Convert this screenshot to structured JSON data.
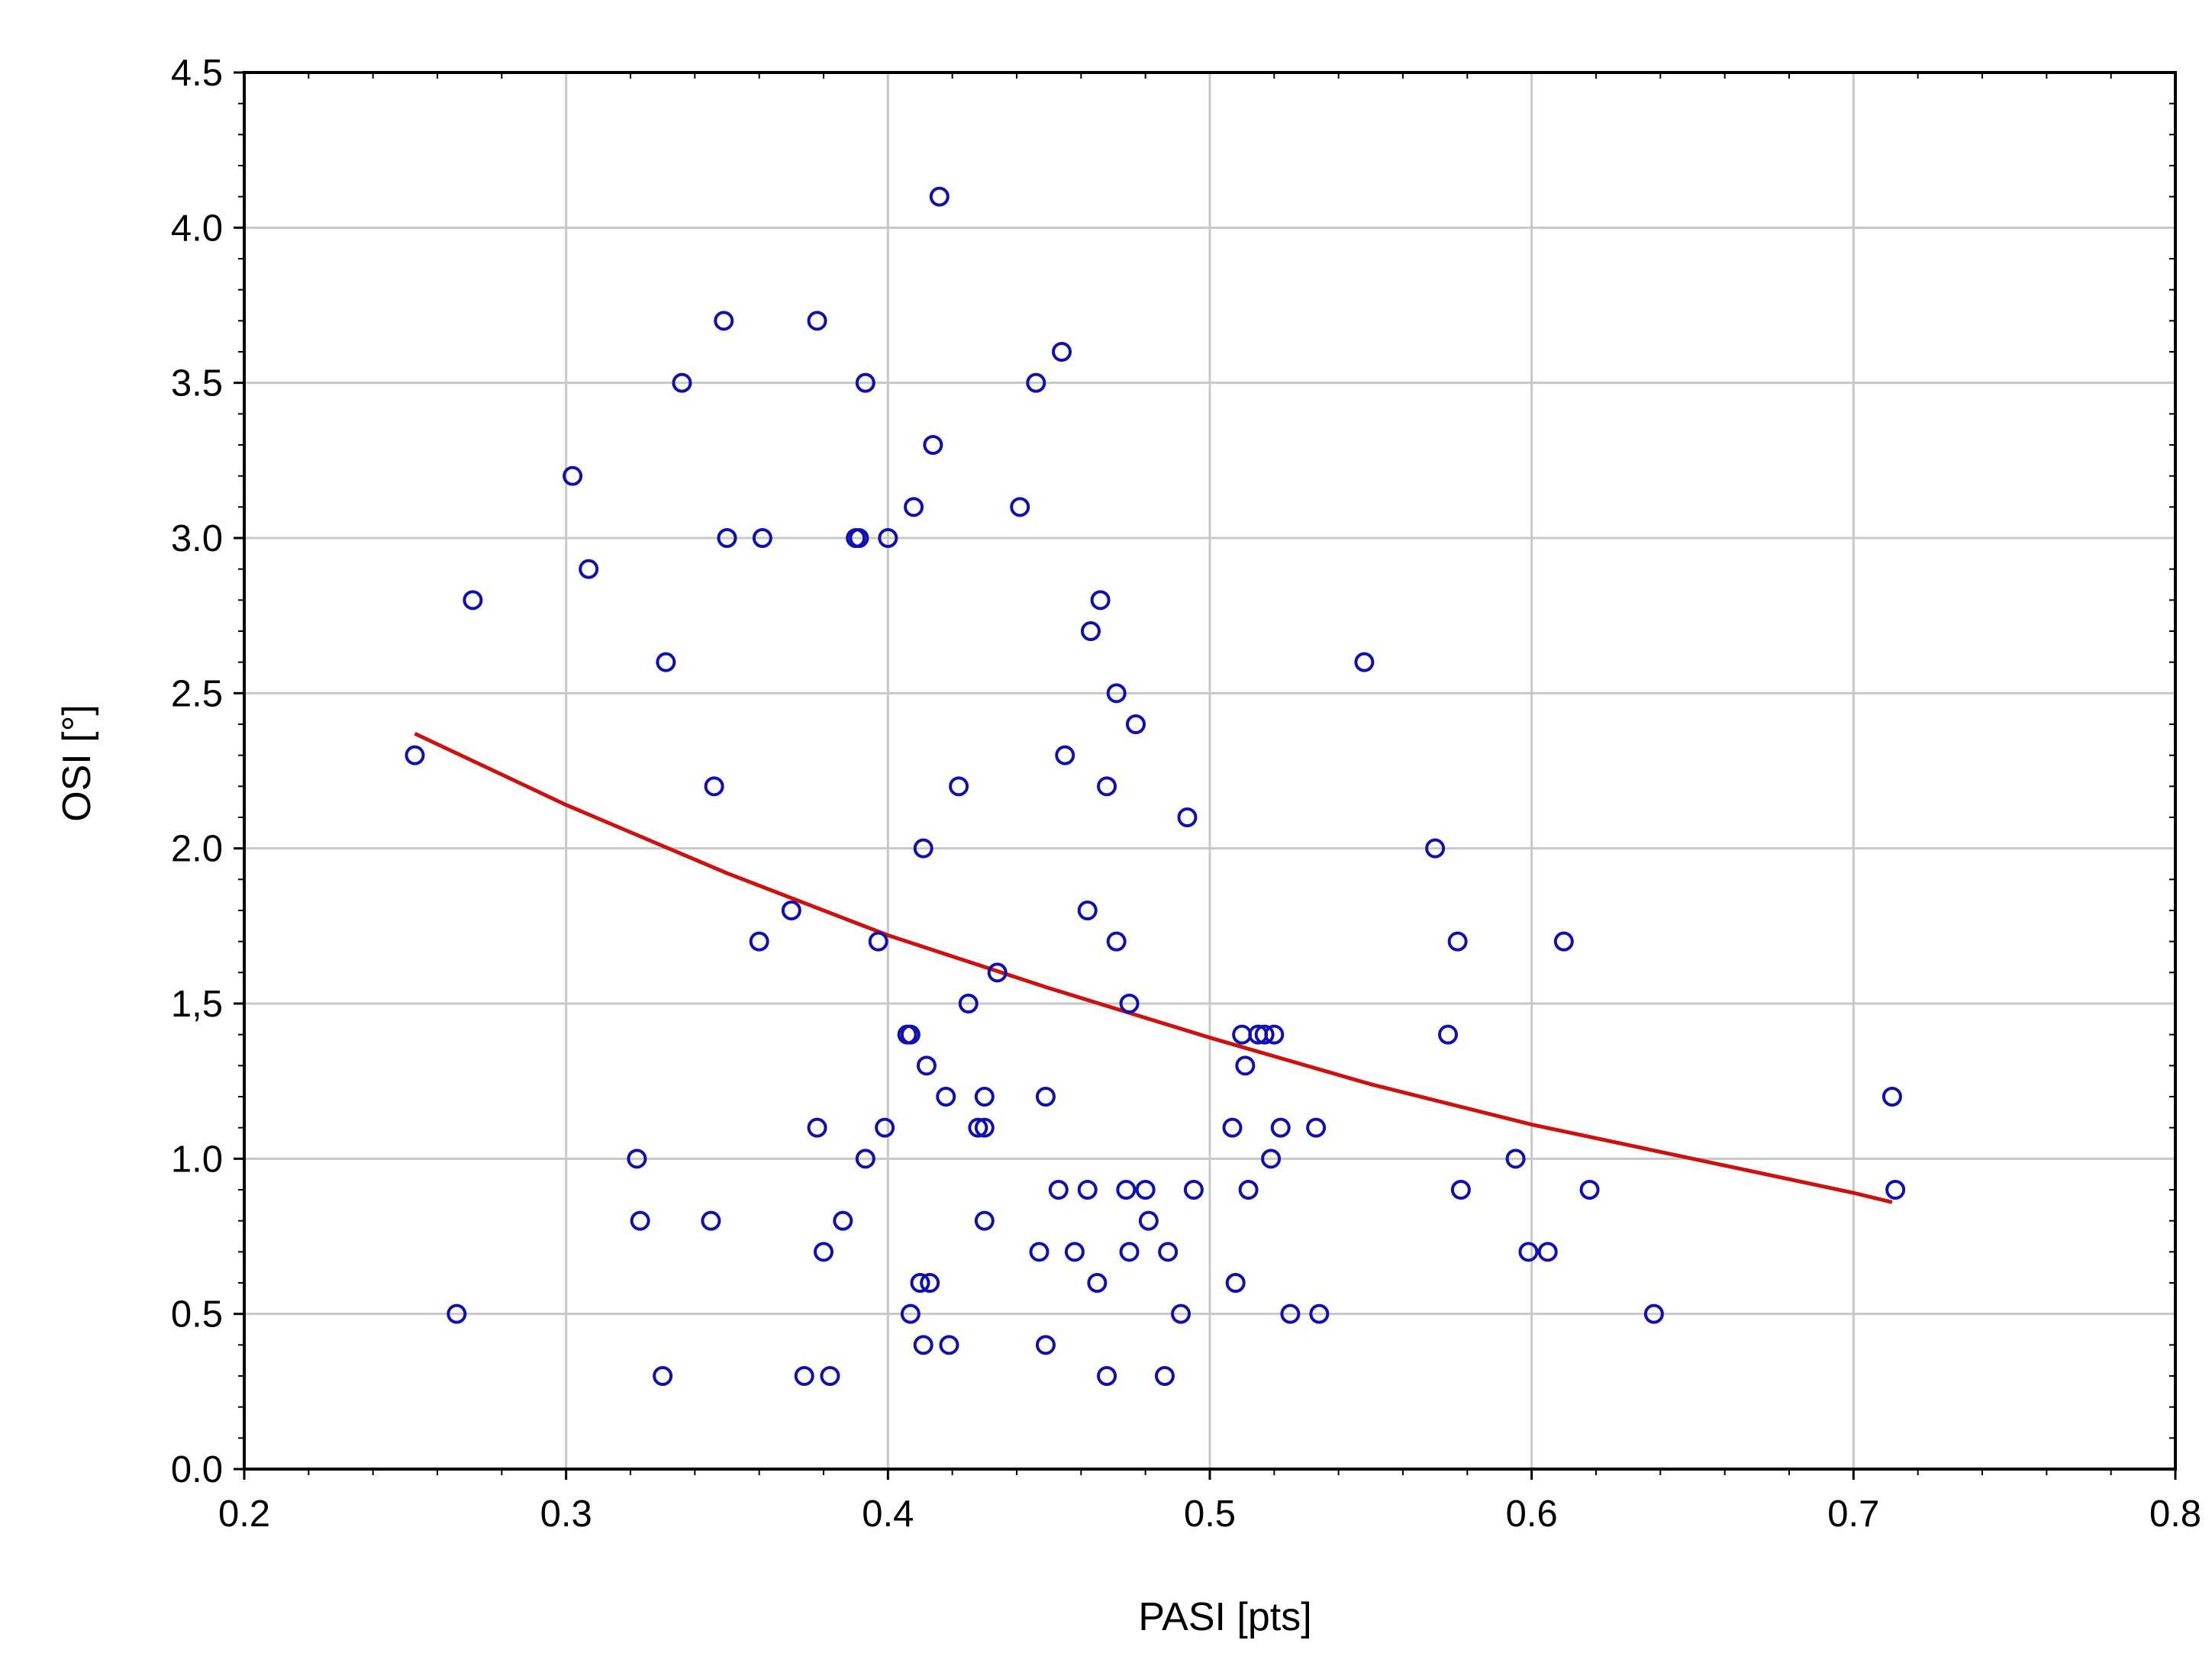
{
  "chart_data": {
    "type": "scatter",
    "xlabel": "PASI [pts]",
    "ylabel": "OSI [°]",
    "xlim": [
      0.2,
      0.8
    ],
    "ylim": [
      0.0,
      4.5
    ],
    "grid": true,
    "x_ticks": [
      "0.2",
      "0.3",
      "0.4",
      "0.5",
      "0.6",
      "0.7",
      "0.8"
    ],
    "y_ticks": [
      "0.0",
      "0.5",
      "1.0",
      "1,5",
      "2.0",
      "2.5",
      "3.0",
      "3.5",
      "4.0",
      "4.5"
    ],
    "colors": {
      "points": "#1010b0",
      "fit": "#cc1111",
      "grid": "#c8c8c8",
      "axes": "#000000"
    },
    "series": [
      {
        "points": [
          [
            0.253,
            2.3
          ],
          [
            0.266,
            0.5
          ],
          [
            0.271,
            2.8
          ],
          [
            0.302,
            3.2
          ],
          [
            0.307,
            2.9
          ],
          [
            0.322,
            1.0
          ],
          [
            0.323,
            0.8
          ],
          [
            0.33,
            0.3
          ],
          [
            0.331,
            2.6
          ],
          [
            0.336,
            3.5
          ],
          [
            0.345,
            0.8
          ],
          [
            0.346,
            2.2
          ],
          [
            0.349,
            3.7
          ],
          [
            0.35,
            3.0
          ],
          [
            0.36,
            1.7
          ],
          [
            0.361,
            3.0
          ],
          [
            0.37,
            1.8
          ],
          [
            0.374,
            0.3
          ],
          [
            0.378,
            1.1
          ],
          [
            0.378,
            3.7
          ],
          [
            0.38,
            0.7
          ],
          [
            0.382,
            0.3
          ],
          [
            0.386,
            0.8
          ],
          [
            0.39,
            3.0
          ],
          [
            0.391,
            3.0
          ],
          [
            0.393,
            1.0
          ],
          [
            0.393,
            3.5
          ],
          [
            0.397,
            1.7
          ],
          [
            0.399,
            1.1
          ],
          [
            0.4,
            3.0
          ],
          [
            0.406,
            1.4
          ],
          [
            0.407,
            0.5
          ],
          [
            0.407,
            1.4
          ],
          [
            0.408,
            3.1
          ],
          [
            0.41,
            0.6
          ],
          [
            0.411,
            0.4
          ],
          [
            0.411,
            2.0
          ],
          [
            0.412,
            1.3
          ],
          [
            0.413,
            0.6
          ],
          [
            0.414,
            3.3
          ],
          [
            0.416,
            4.1
          ],
          [
            0.418,
            1.2
          ],
          [
            0.419,
            0.4
          ],
          [
            0.422,
            2.2
          ],
          [
            0.425,
            1.5
          ],
          [
            0.428,
            1.1
          ],
          [
            0.43,
            1.1
          ],
          [
            0.43,
            1.2
          ],
          [
            0.43,
            0.8
          ],
          [
            0.434,
            1.6
          ],
          [
            0.441,
            3.1
          ],
          [
            0.446,
            3.5
          ],
          [
            0.447,
            0.7
          ],
          [
            0.449,
            1.2
          ],
          [
            0.449,
            0.4
          ],
          [
            0.453,
            0.9
          ],
          [
            0.454,
            3.6
          ],
          [
            0.455,
            2.3
          ],
          [
            0.458,
            0.7
          ],
          [
            0.462,
            1.8
          ],
          [
            0.462,
            0.9
          ],
          [
            0.463,
            2.7
          ],
          [
            0.465,
            0.6
          ],
          [
            0.466,
            2.8
          ],
          [
            0.468,
            2.2
          ],
          [
            0.468,
            0.3
          ],
          [
            0.471,
            1.7
          ],
          [
            0.471,
            2.5
          ],
          [
            0.474,
            0.9
          ],
          [
            0.475,
            0.7
          ],
          [
            0.475,
            1.5
          ],
          [
            0.477,
            2.4
          ],
          [
            0.48,
            0.9
          ],
          [
            0.481,
            0.8
          ],
          [
            0.486,
            0.3
          ],
          [
            0.487,
            0.7
          ],
          [
            0.491,
            0.5
          ],
          [
            0.493,
            2.1
          ],
          [
            0.495,
            0.9
          ],
          [
            0.507,
            1.1
          ],
          [
            0.508,
            0.6
          ],
          [
            0.51,
            1.4
          ],
          [
            0.511,
            1.3
          ],
          [
            0.512,
            0.9
          ],
          [
            0.515,
            1.4
          ],
          [
            0.517,
            1.4
          ],
          [
            0.519,
            1.0
          ],
          [
            0.52,
            1.4
          ],
          [
            0.522,
            1.1
          ],
          [
            0.525,
            0.5
          ],
          [
            0.533,
            1.1
          ],
          [
            0.534,
            0.5
          ],
          [
            0.548,
            2.6
          ],
          [
            0.57,
            2.0
          ],
          [
            0.574,
            1.4
          ],
          [
            0.577,
            1.7
          ],
          [
            0.578,
            0.9
          ],
          [
            0.595,
            1.0
          ],
          [
            0.599,
            0.7
          ],
          [
            0.605,
            0.7
          ],
          [
            0.61,
            1.7
          ],
          [
            0.618,
            0.9
          ],
          [
            0.638,
            0.5
          ],
          [
            0.712,
            1.2
          ],
          [
            0.713,
            0.9
          ]
        ]
      }
    ],
    "fit": {
      "type": "curve",
      "points": [
        [
          0.253,
          2.37
        ],
        [
          0.3,
          2.14
        ],
        [
          0.35,
          1.92
        ],
        [
          0.4,
          1.72
        ],
        [
          0.45,
          1.55
        ],
        [
          0.5,
          1.39
        ],
        [
          0.55,
          1.24
        ],
        [
          0.6,
          1.11
        ],
        [
          0.65,
          1.0
        ],
        [
          0.7,
          0.89
        ],
        [
          0.712,
          0.86
        ]
      ]
    }
  }
}
